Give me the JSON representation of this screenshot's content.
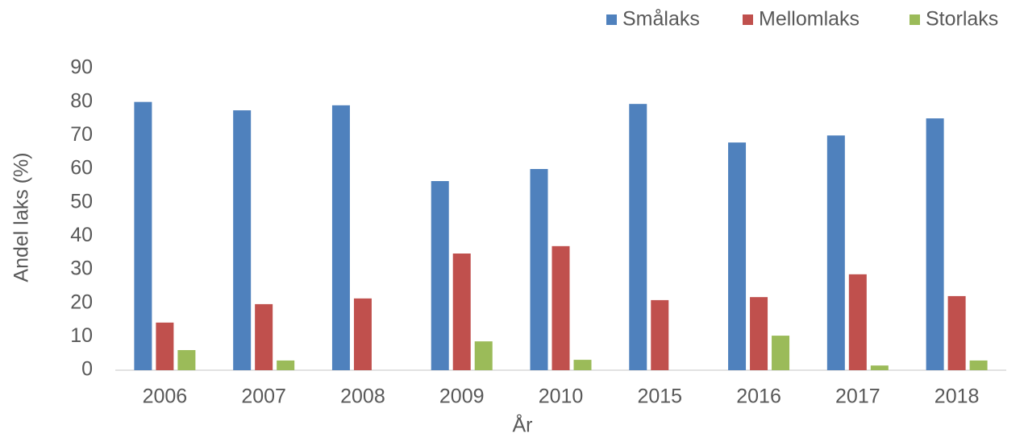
{
  "chart_data": {
    "type": "bar",
    "categories": [
      "2006",
      "2007",
      "2008",
      "2009",
      "2010",
      "2015",
      "2016",
      "2017",
      "2018"
    ],
    "series": [
      {
        "name": "Smålaks",
        "color": "#4f81bd",
        "values": [
          80,
          77.5,
          79,
          56.4,
          60,
          79.4,
          67.9,
          70,
          75.1
        ]
      },
      {
        "name": "Mellomlaks",
        "color": "#c0504d",
        "values": [
          14.2,
          19.7,
          21.4,
          34.8,
          37,
          20.9,
          21.8,
          28.6,
          22.1
        ]
      },
      {
        "name": "Storlaks",
        "color": "#9bbb59",
        "values": [
          6,
          2.9,
          0,
          8.6,
          3.1,
          0,
          10.3,
          1.4,
          2.9
        ]
      }
    ],
    "ylabel": "Andel laks (%)",
    "xlabel": "År",
    "ylim": [
      0,
      90
    ],
    "yticks": [
      0,
      10,
      20,
      30,
      40,
      50,
      60,
      70,
      80,
      90
    ],
    "grid": false,
    "legend": "top-right"
  }
}
